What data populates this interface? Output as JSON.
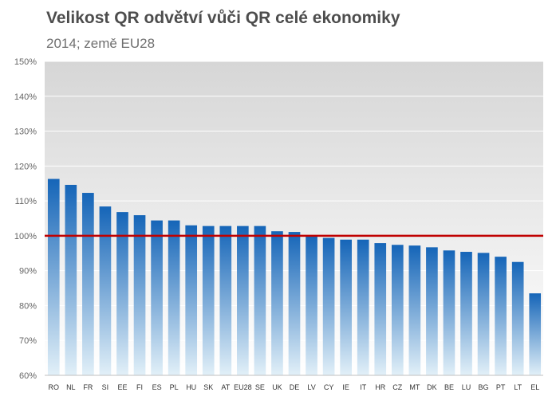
{
  "chart_data": {
    "type": "bar",
    "title": "Velikost QR odvětví vůči QR celé ekonomiky",
    "subtitle": "2014; země EU28",
    "categories": [
      "RO",
      "NL",
      "FR",
      "SI",
      "EE",
      "FI",
      "ES",
      "PL",
      "HU",
      "SK",
      "AT",
      "EU28",
      "SE",
      "UK",
      "DE",
      "LV",
      "CY",
      "IE",
      "IT",
      "HR",
      "CZ",
      "MT",
      "DK",
      "BE",
      "LU",
      "BG",
      "PT",
      "LT",
      "EL"
    ],
    "values": [
      116.3,
      114.6,
      112.3,
      108.4,
      106.8,
      105.9,
      104.4,
      104.4,
      103.0,
      102.8,
      102.8,
      102.8,
      102.8,
      101.3,
      101.1,
      100.0,
      99.4,
      98.9,
      98.9,
      97.9,
      97.4,
      97.2,
      96.7,
      95.8,
      95.4,
      95.1,
      94.0,
      92.5,
      83.5
    ],
    "ylim": [
      60,
      150
    ],
    "yticks": [
      60,
      70,
      80,
      90,
      100,
      110,
      120,
      130,
      140,
      150
    ],
    "ytick_labels": [
      "60%",
      "70%",
      "80%",
      "90%",
      "100%",
      "110%",
      "120%",
      "130%",
      "140%",
      "150%"
    ],
    "reference_line": 100,
    "grid": true,
    "colors": {
      "bar_top": "#1565b8",
      "bar_bottom": "#e2f0f8",
      "reference_line": "#c00000",
      "plot_bg_top": "#d6d6d6",
      "plot_bg_bottom": "#ffffff",
      "grid": "#ffffff"
    }
  }
}
